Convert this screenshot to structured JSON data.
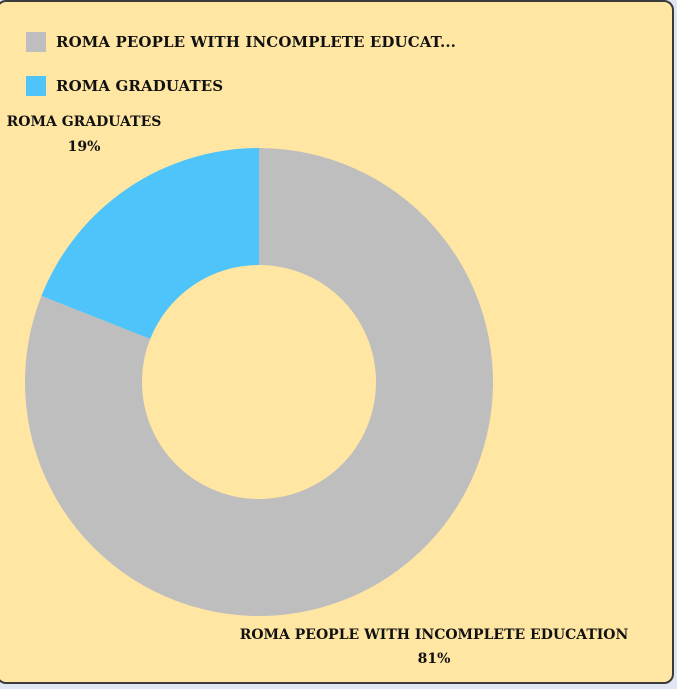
{
  "chart_data": {
    "type": "pie",
    "donut": true,
    "legend_position": "top-left",
    "slices": [
      {
        "name": "ROMA PEOPLE WITH INCOMPLETE EDUCATION",
        "legend_label": "ROMA PEOPLE WITH INCOMPLETE EDUCAT...",
        "value": 81,
        "label": "81%",
        "color": "#bebebe"
      },
      {
        "name": "ROMA GRADUATES",
        "legend_label": "ROMA GRADUATES",
        "value": 19,
        "label": "19%",
        "color": "#4fc4fb"
      }
    ]
  },
  "colors": {
    "background": "#ffe6a3",
    "border": "#3a3a3a"
  }
}
